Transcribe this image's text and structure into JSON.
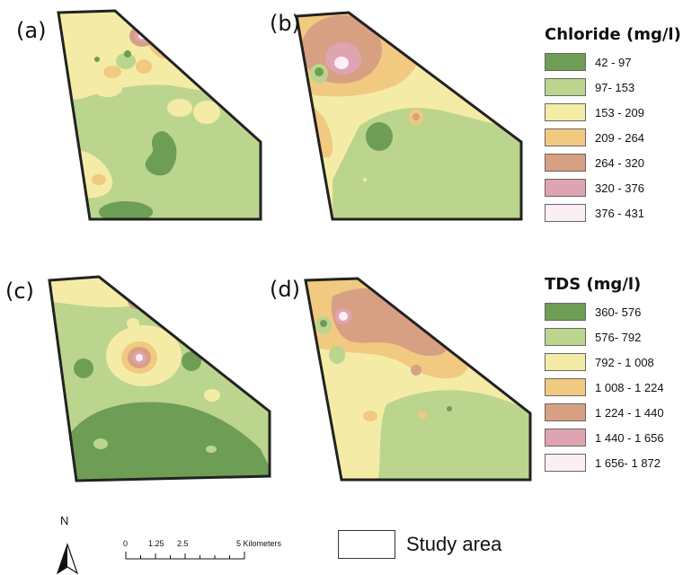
{
  "panels": [
    {
      "id": "a",
      "label": "(a)"
    },
    {
      "id": "b",
      "label": "(b)"
    },
    {
      "id": "c",
      "label": "(c)"
    },
    {
      "id": "d",
      "label": "(d)"
    }
  ],
  "legend_chloride": {
    "title": "Chloride (mg/l)",
    "classes": [
      {
        "label": "42 - 97",
        "color": "#6e9e55"
      },
      {
        "label": "97- 153",
        "color": "#bcd58e"
      },
      {
        "label": "153 - 209",
        "color": "#f4eca6"
      },
      {
        "label": "209 - 264",
        "color": "#f1c981"
      },
      {
        "label": "264 - 320",
        "color": "#d7a083"
      },
      {
        "label": "320 - 376",
        "color": "#dea4b1"
      },
      {
        "label": "376 - 431",
        "color": "#fbeef5"
      }
    ]
  },
  "legend_tds": {
    "title": "TDS (mg/l)",
    "classes": [
      {
        "label": "360- 576",
        "color": "#6e9e55"
      },
      {
        "label": "576- 792",
        "color": "#bcd58e"
      },
      {
        "label": "792 - 1 008",
        "color": "#f4eca6"
      },
      {
        "label": "1 008 - 1 224",
        "color": "#f1c981"
      },
      {
        "label": "1 224 - 1 440",
        "color": "#d7a083"
      },
      {
        "label": "1 440 - 1 656",
        "color": "#dea4b1"
      },
      {
        "label": "1 656- 1 872",
        "color": "#fbeef5"
      }
    ]
  },
  "north_arrow": {
    "label": "N"
  },
  "scale_bar": {
    "ticks": [
      "0",
      "1.25",
      "2.5",
      "5 Kilometers"
    ]
  },
  "study_area": {
    "label": "Study area"
  }
}
